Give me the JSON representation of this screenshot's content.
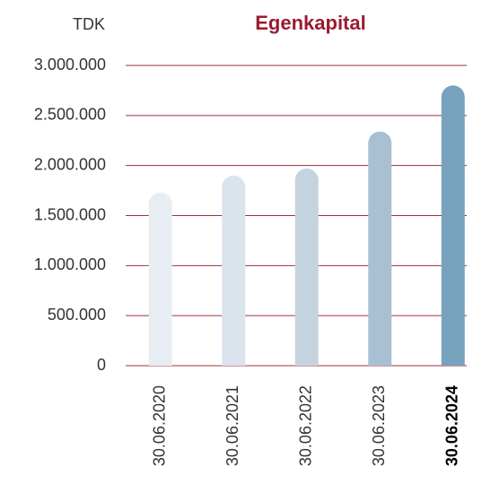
{
  "chart_data": {
    "type": "bar",
    "title": "Egenkapital",
    "ylabel": "TDK",
    "categories": [
      "30.06.2020",
      "30.06.2021",
      "30.06.2022",
      "30.06.2023",
      "30.06.2024"
    ],
    "values": [
      1730000,
      1900000,
      1970000,
      2340000,
      2800000
    ],
    "colors": [
      "#e8edf3",
      "#dbe3ec",
      "#c5d3df",
      "#a9c0d3",
      "#77a3bf"
    ],
    "highlight_category": 4,
    "ylim": [
      0,
      3000000
    ],
    "yticks": [
      0,
      {
        "value": 500000,
        "label": "500.000"
      },
      {
        "value": 1000000,
        "label": "1.000.000"
      },
      {
        "value": 1500000,
        "label": "1.500.000"
      },
      {
        "value": 2000000,
        "label": "2.000.000"
      },
      {
        "value": 2500000,
        "label": "2.500.000"
      },
      {
        "value": 3000000,
        "label": "3.000.000"
      }
    ],
    "grid": true
  }
}
